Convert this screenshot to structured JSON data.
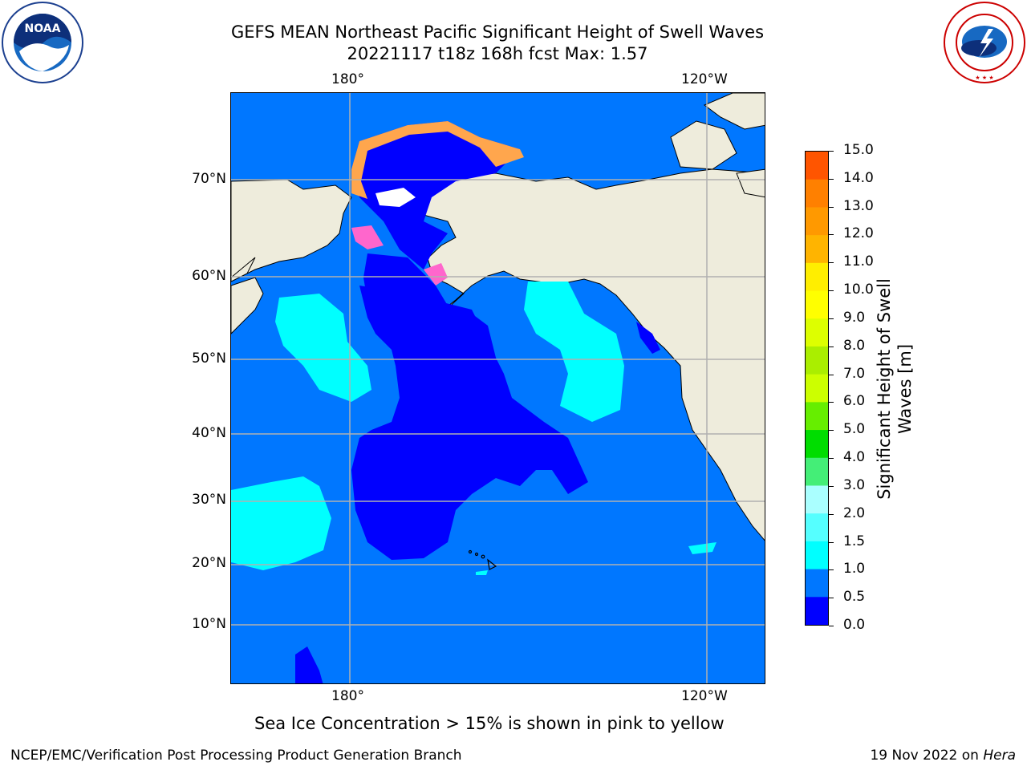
{
  "header": {
    "title": "GEFS MEAN Northeast Pacific Significant Height of Swell Waves",
    "subtitle": "20221117 t18z 168h fcst   Max: 1.57"
  },
  "logos": {
    "left_text": "NOAA",
    "left_ring_text": "NATIONAL OCEANIC AND ATMOSPHERIC ADMINISTRATION · U.S. DEPARTMENT OF COMMERCE",
    "right_ring_text": "NATIONAL WEATHER SERVICE"
  },
  "map": {
    "lon_labels": [
      "180°",
      "120°W"
    ],
    "lat_labels": [
      "70°N",
      "60°N",
      "50°N",
      "40°N",
      "30°N",
      "20°N",
      "10°N"
    ],
    "colors": {
      "ocean_0_0p5": "#0000ff",
      "ocean_0p5_1": "#0077ff",
      "ocean_1_1p5": "#00ffff",
      "land": "#eeecdc",
      "grid": "#b0b0b0",
      "ice_pink": "#ff66cc",
      "ice_orange": "#ffa64d",
      "ice_yellow": "#ffd24d"
    }
  },
  "colorbar": {
    "title_line1": "Significant Height of Swell",
    "title_line2": "Waves [m]",
    "ticks": [
      "15.0",
      "14.0",
      "13.0",
      "12.0",
      "11.0",
      "10.0",
      "9.0",
      "8.0",
      "7.0",
      "6.0",
      "5.0",
      "4.0",
      "3.0",
      "2.0",
      "1.5",
      "1.0",
      "0.5",
      "0.0"
    ],
    "colors_top_to_bottom": [
      "#ff0000",
      "#ff2200",
      "#ff5500",
      "#ff8000",
      "#ff9900",
      "#ffb400",
      "#ffee00",
      "#ffff00",
      "#ddff00",
      "#aaee00",
      "#ccff00",
      "#66ee00",
      "#00dd00",
      "#44ee77",
      "#aaffff",
      "#55ffff",
      "#00ffff",
      "#0077ff",
      "#0000ff"
    ]
  },
  "note": "Sea Ice Concentration > 15% is shown in pink to yellow",
  "footer": {
    "left": "NCEP/EMC/Verification Post Processing Product Generation Branch",
    "right_prefix": "19 Nov 2022 on ",
    "right_host": "Hera"
  },
  "chart_data": {
    "type": "heatmap",
    "title": "GEFS MEAN Northeast Pacific Significant Height of Swell Waves",
    "subtitle": "20221117 t18z 168h fcst   Max: 1.57",
    "max_value": 1.57,
    "colorbar_label": "Significant Height of Swell Waves [m]",
    "levels": [
      0.0,
      0.5,
      1.0,
      1.5,
      2.0,
      3.0,
      4.0,
      5.0,
      6.0,
      7.0,
      8.0,
      9.0,
      10.0,
      11.0,
      12.0,
      13.0,
      14.0,
      15.0
    ]
  }
}
